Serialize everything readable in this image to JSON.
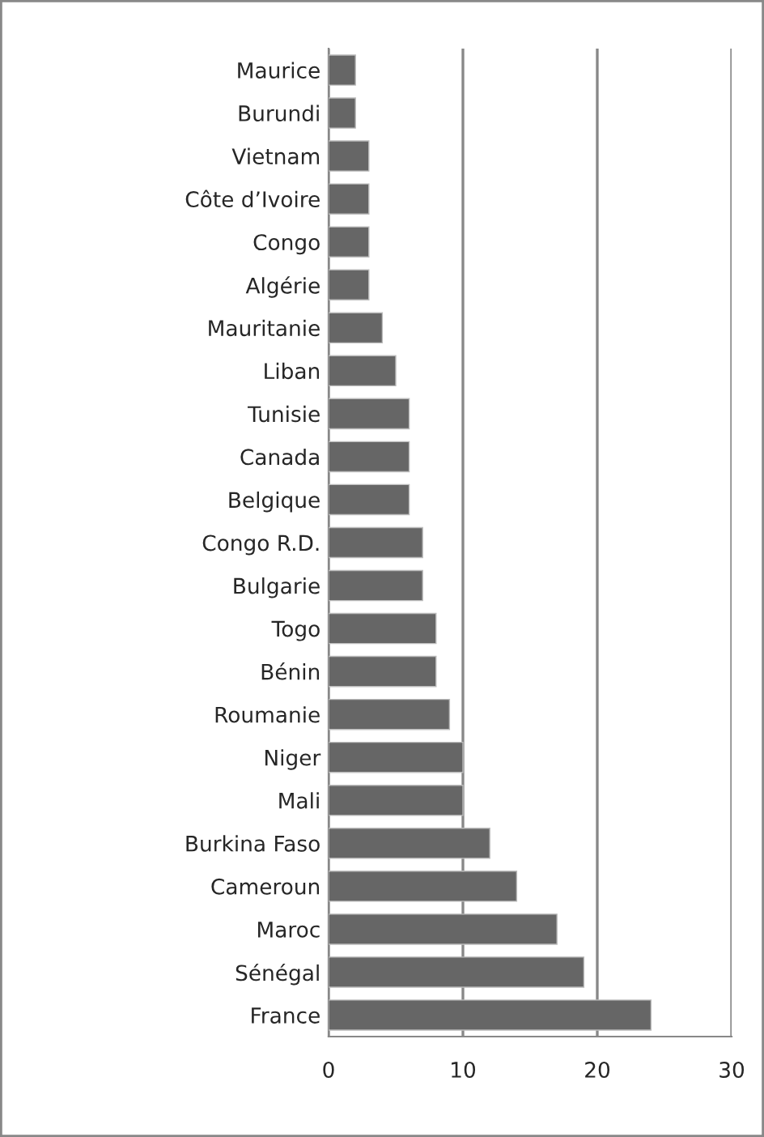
{
  "chart_data": {
    "type": "bar",
    "orientation": "horizontal",
    "categories": [
      "Maurice",
      "Burundi",
      "Vietnam",
      "Côte d’Ivoire",
      "Congo",
      "Algérie",
      "Mauritanie",
      "Liban",
      "Tunisie",
      "Canada",
      "Belgique",
      "Congo R.D.",
      "Bulgarie",
      "Togo",
      "Bénin",
      "Roumanie",
      "Niger",
      "Mali",
      "Burkina Faso",
      "Cameroun",
      "Maroc",
      "Sénégal",
      "France"
    ],
    "values": [
      2,
      2,
      3,
      3,
      3,
      3,
      4,
      5,
      6,
      6,
      6,
      7,
      7,
      8,
      8,
      9,
      10,
      10,
      12,
      14,
      17,
      19,
      24
    ],
    "color": "#666666",
    "xlim": [
      0,
      30
    ],
    "xticks": [
      0,
      10,
      20,
      30
    ],
    "grid": "x",
    "legend": false
  }
}
